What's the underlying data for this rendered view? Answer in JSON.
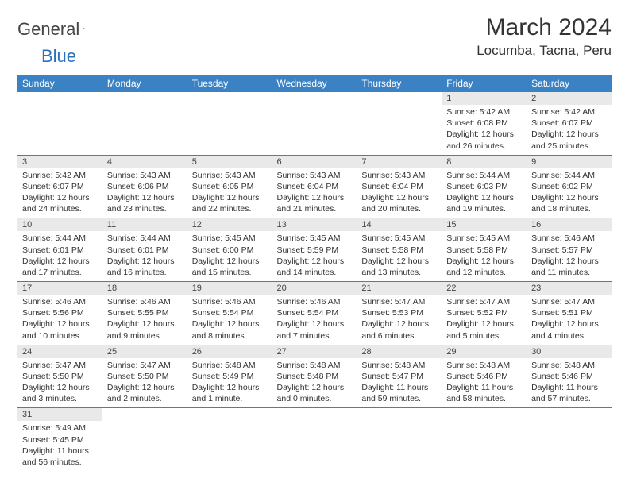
{
  "logo": {
    "part1": "General",
    "part2": "Blue"
  },
  "title": "March 2024",
  "location": "Locumba, Tacna, Peru",
  "colors": {
    "header_bg": "#3b82c4",
    "header_text": "#ffffff",
    "daynum_bg": "#e9e9e9",
    "border": "#3b82c4",
    "logo_blue": "#2a72c0"
  },
  "weekdays": [
    "Sunday",
    "Monday",
    "Tuesday",
    "Wednesday",
    "Thursday",
    "Friday",
    "Saturday"
  ],
  "weeks": [
    [
      null,
      null,
      null,
      null,
      null,
      {
        "n": "1",
        "sr": "Sunrise: 5:42 AM",
        "ss": "Sunset: 6:08 PM",
        "dl1": "Daylight: 12 hours",
        "dl2": "and 26 minutes."
      },
      {
        "n": "2",
        "sr": "Sunrise: 5:42 AM",
        "ss": "Sunset: 6:07 PM",
        "dl1": "Daylight: 12 hours",
        "dl2": "and 25 minutes."
      }
    ],
    [
      {
        "n": "3",
        "sr": "Sunrise: 5:42 AM",
        "ss": "Sunset: 6:07 PM",
        "dl1": "Daylight: 12 hours",
        "dl2": "and 24 minutes."
      },
      {
        "n": "4",
        "sr": "Sunrise: 5:43 AM",
        "ss": "Sunset: 6:06 PM",
        "dl1": "Daylight: 12 hours",
        "dl2": "and 23 minutes."
      },
      {
        "n": "5",
        "sr": "Sunrise: 5:43 AM",
        "ss": "Sunset: 6:05 PM",
        "dl1": "Daylight: 12 hours",
        "dl2": "and 22 minutes."
      },
      {
        "n": "6",
        "sr": "Sunrise: 5:43 AM",
        "ss": "Sunset: 6:04 PM",
        "dl1": "Daylight: 12 hours",
        "dl2": "and 21 minutes."
      },
      {
        "n": "7",
        "sr": "Sunrise: 5:43 AM",
        "ss": "Sunset: 6:04 PM",
        "dl1": "Daylight: 12 hours",
        "dl2": "and 20 minutes."
      },
      {
        "n": "8",
        "sr": "Sunrise: 5:44 AM",
        "ss": "Sunset: 6:03 PM",
        "dl1": "Daylight: 12 hours",
        "dl2": "and 19 minutes."
      },
      {
        "n": "9",
        "sr": "Sunrise: 5:44 AM",
        "ss": "Sunset: 6:02 PM",
        "dl1": "Daylight: 12 hours",
        "dl2": "and 18 minutes."
      }
    ],
    [
      {
        "n": "10",
        "sr": "Sunrise: 5:44 AM",
        "ss": "Sunset: 6:01 PM",
        "dl1": "Daylight: 12 hours",
        "dl2": "and 17 minutes."
      },
      {
        "n": "11",
        "sr": "Sunrise: 5:44 AM",
        "ss": "Sunset: 6:01 PM",
        "dl1": "Daylight: 12 hours",
        "dl2": "and 16 minutes."
      },
      {
        "n": "12",
        "sr": "Sunrise: 5:45 AM",
        "ss": "Sunset: 6:00 PM",
        "dl1": "Daylight: 12 hours",
        "dl2": "and 15 minutes."
      },
      {
        "n": "13",
        "sr": "Sunrise: 5:45 AM",
        "ss": "Sunset: 5:59 PM",
        "dl1": "Daylight: 12 hours",
        "dl2": "and 14 minutes."
      },
      {
        "n": "14",
        "sr": "Sunrise: 5:45 AM",
        "ss": "Sunset: 5:58 PM",
        "dl1": "Daylight: 12 hours",
        "dl2": "and 13 minutes."
      },
      {
        "n": "15",
        "sr": "Sunrise: 5:45 AM",
        "ss": "Sunset: 5:58 PM",
        "dl1": "Daylight: 12 hours",
        "dl2": "and 12 minutes."
      },
      {
        "n": "16",
        "sr": "Sunrise: 5:46 AM",
        "ss": "Sunset: 5:57 PM",
        "dl1": "Daylight: 12 hours",
        "dl2": "and 11 minutes."
      }
    ],
    [
      {
        "n": "17",
        "sr": "Sunrise: 5:46 AM",
        "ss": "Sunset: 5:56 PM",
        "dl1": "Daylight: 12 hours",
        "dl2": "and 10 minutes."
      },
      {
        "n": "18",
        "sr": "Sunrise: 5:46 AM",
        "ss": "Sunset: 5:55 PM",
        "dl1": "Daylight: 12 hours",
        "dl2": "and 9 minutes."
      },
      {
        "n": "19",
        "sr": "Sunrise: 5:46 AM",
        "ss": "Sunset: 5:54 PM",
        "dl1": "Daylight: 12 hours",
        "dl2": "and 8 minutes."
      },
      {
        "n": "20",
        "sr": "Sunrise: 5:46 AM",
        "ss": "Sunset: 5:54 PM",
        "dl1": "Daylight: 12 hours",
        "dl2": "and 7 minutes."
      },
      {
        "n": "21",
        "sr": "Sunrise: 5:47 AM",
        "ss": "Sunset: 5:53 PM",
        "dl1": "Daylight: 12 hours",
        "dl2": "and 6 minutes."
      },
      {
        "n": "22",
        "sr": "Sunrise: 5:47 AM",
        "ss": "Sunset: 5:52 PM",
        "dl1": "Daylight: 12 hours",
        "dl2": "and 5 minutes."
      },
      {
        "n": "23",
        "sr": "Sunrise: 5:47 AM",
        "ss": "Sunset: 5:51 PM",
        "dl1": "Daylight: 12 hours",
        "dl2": "and 4 minutes."
      }
    ],
    [
      {
        "n": "24",
        "sr": "Sunrise: 5:47 AM",
        "ss": "Sunset: 5:50 PM",
        "dl1": "Daylight: 12 hours",
        "dl2": "and 3 minutes."
      },
      {
        "n": "25",
        "sr": "Sunrise: 5:47 AM",
        "ss": "Sunset: 5:50 PM",
        "dl1": "Daylight: 12 hours",
        "dl2": "and 2 minutes."
      },
      {
        "n": "26",
        "sr": "Sunrise: 5:48 AM",
        "ss": "Sunset: 5:49 PM",
        "dl1": "Daylight: 12 hours",
        "dl2": "and 1 minute."
      },
      {
        "n": "27",
        "sr": "Sunrise: 5:48 AM",
        "ss": "Sunset: 5:48 PM",
        "dl1": "Daylight: 12 hours",
        "dl2": "and 0 minutes."
      },
      {
        "n": "28",
        "sr": "Sunrise: 5:48 AM",
        "ss": "Sunset: 5:47 PM",
        "dl1": "Daylight: 11 hours",
        "dl2": "and 59 minutes."
      },
      {
        "n": "29",
        "sr": "Sunrise: 5:48 AM",
        "ss": "Sunset: 5:46 PM",
        "dl1": "Daylight: 11 hours",
        "dl2": "and 58 minutes."
      },
      {
        "n": "30",
        "sr": "Sunrise: 5:48 AM",
        "ss": "Sunset: 5:46 PM",
        "dl1": "Daylight: 11 hours",
        "dl2": "and 57 minutes."
      }
    ],
    [
      {
        "n": "31",
        "sr": "Sunrise: 5:49 AM",
        "ss": "Sunset: 5:45 PM",
        "dl1": "Daylight: 11 hours",
        "dl2": "and 56 minutes."
      },
      null,
      null,
      null,
      null,
      null,
      null
    ]
  ]
}
